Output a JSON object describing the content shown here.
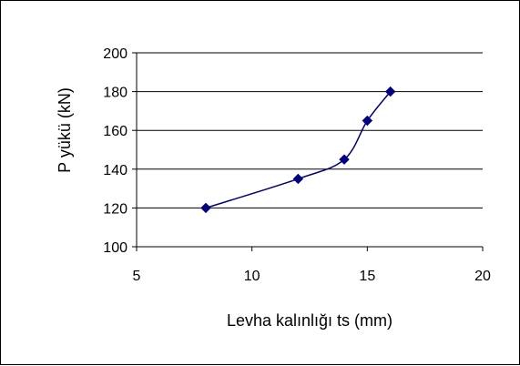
{
  "chart_data": {
    "type": "line",
    "title": "",
    "xlabel": "Levha kalınlığı ts (mm)",
    "ylabel": "P yükü (kN)",
    "xlim": [
      5,
      20
    ],
    "ylim": [
      100,
      200
    ],
    "x_ticks": [
      5,
      10,
      15,
      20
    ],
    "y_ticks": [
      100,
      120,
      140,
      160,
      180,
      200
    ],
    "grid": "horizontal",
    "legend": "none",
    "smoothed": true,
    "series": [
      {
        "x": [
          8,
          12,
          14,
          15,
          16
        ],
        "y": [
          120,
          135,
          145,
          165,
          180
        ],
        "color": "#000080",
        "marker": "diamond"
      }
    ]
  }
}
